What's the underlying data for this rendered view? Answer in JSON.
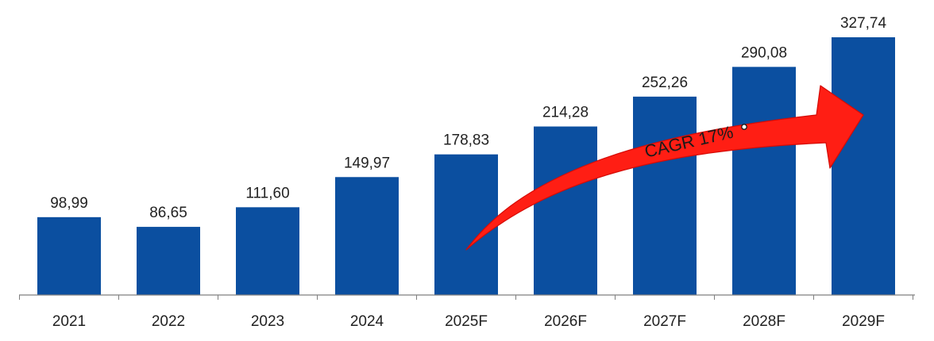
{
  "chart_data": {
    "type": "bar",
    "categories": [
      "2021",
      "2022",
      "2023",
      "2024",
      "2025F",
      "2026F",
      "2027F",
      "2028F",
      "2029F"
    ],
    "values": [
      98.99,
      86.65,
      111.6,
      149.97,
      178.83,
      214.28,
      252.26,
      290.08,
      327.74
    ],
    "value_labels": [
      "98,99",
      "86,65",
      "111,60",
      "149,97",
      "178,83",
      "214,28",
      "252,26",
      "290,08",
      "327,74"
    ],
    "ylim": [
      0,
      327.74
    ],
    "grid": false,
    "colors": {
      "bar": "#0b4fa0",
      "arrow": "#ff1e14",
      "arrow_stroke": "#d40b06",
      "axis": "#7f7f7f"
    },
    "annotation": {
      "text": "CAGR 17%",
      "icon": "red-growth-arrow-icon"
    }
  }
}
